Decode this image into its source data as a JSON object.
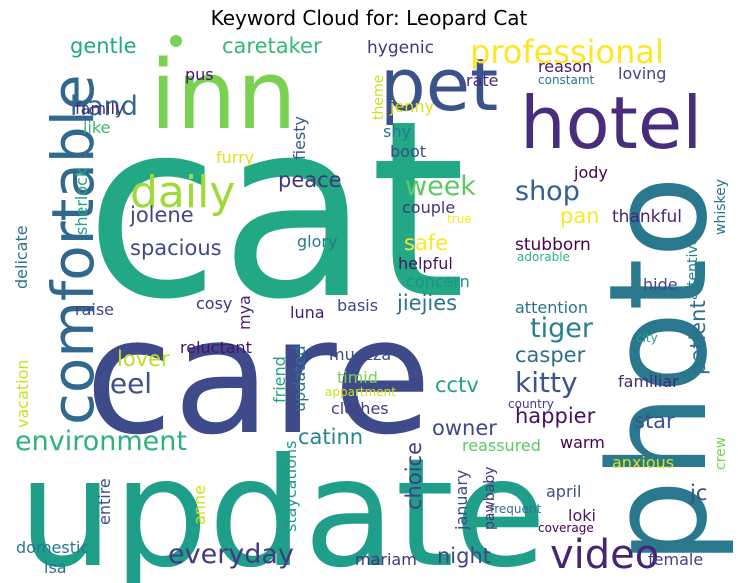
{
  "title": "Keyword Cloud for: Leopard Cat",
  "words": [
    {
      "text": "cat",
      "color": "#22a884"
    },
    {
      "text": "care",
      "color": "#3e4a89"
    },
    {
      "text": "update",
      "color": "#1f9e89"
    },
    {
      "text": "photo",
      "color": "#2a788e"
    },
    {
      "text": "inn",
      "color": "#7ad151"
    },
    {
      "text": "hotel",
      "color": "#472d7b"
    },
    {
      "text": "pet",
      "color": "#3b528b"
    },
    {
      "text": "comfortable",
      "color": "#31688e"
    },
    {
      "text": "professional",
      "color": "#fde725"
    },
    {
      "text": "daily",
      "color": "#a0da39"
    },
    {
      "text": "video",
      "color": "#482475"
    },
    {
      "text": "environment",
      "color": "#2db27d"
    },
    {
      "text": "everyday",
      "color": "#443983"
    },
    {
      "text": "kitty",
      "color": "#3b528b"
    },
    {
      "text": "tiger",
      "color": "#27808e"
    },
    {
      "text": "hand",
      "color": "#31688e"
    },
    {
      "text": "shop",
      "color": "#355f8d"
    },
    {
      "text": "week",
      "color": "#5ec962"
    },
    {
      "text": "feel",
      "color": "#3b528b"
    },
    {
      "text": "caretaker",
      "color": "#35b779"
    },
    {
      "text": "gentle",
      "color": "#22a884"
    },
    {
      "text": "jolene",
      "color": "#414487"
    },
    {
      "text": "spacious",
      "color": "#3e4989"
    },
    {
      "text": "peace",
      "color": "#46327e"
    },
    {
      "text": "jiejies",
      "color": "#2c728e"
    },
    {
      "text": "cctv",
      "color": "#20a386"
    },
    {
      "text": "casper",
      "color": "#2e6e8e"
    },
    {
      "text": "patient",
      "color": "#2e6e8e"
    },
    {
      "text": "catinn",
      "color": "#25848e"
    },
    {
      "text": "choice",
      "color": "#433e85"
    },
    {
      "text": "star",
      "color": "#3b528b"
    },
    {
      "text": "happier",
      "color": "#471063"
    },
    {
      "text": "owner",
      "color": "#3e4989"
    },
    {
      "text": "lover",
      "color": "#bddf26"
    },
    {
      "text": "night",
      "color": "#414487"
    },
    {
      "text": "jc",
      "color": "#3b528b"
    },
    {
      "text": "pan",
      "color": "#fde725"
    },
    {
      "text": "safe",
      "color": "#fde725"
    },
    {
      "text": "stubborn",
      "color": "#440154"
    },
    {
      "text": "thankful",
      "color": "#482475"
    },
    {
      "text": "attentive",
      "color": "#277f8e"
    },
    {
      "text": "whiskey",
      "color": "#2c728e"
    },
    {
      "text": "hygenic",
      "color": "#46337f"
    },
    {
      "text": "loving",
      "color": "#414487"
    },
    {
      "text": "rate",
      "color": "#472c7a"
    },
    {
      "text": "reason",
      "color": "#48186a"
    },
    {
      "text": "constamt",
      "color": "#2a788e"
    },
    {
      "text": "jenny",
      "color": "#dde318"
    },
    {
      "text": "theme",
      "color": "#d0e11c"
    },
    {
      "text": "fiesty",
      "color": "#365c8d"
    },
    {
      "text": "pus",
      "color": "#481668"
    },
    {
      "text": "family",
      "color": "#472c7a"
    },
    {
      "text": "like",
      "color": "#3aba76"
    },
    {
      "text": "sherlock",
      "color": "#20a486"
    },
    {
      "text": "furry",
      "color": "#dae319"
    },
    {
      "text": "shy",
      "color": "#2a768e"
    },
    {
      "text": "boot",
      "color": "#3e4a89"
    },
    {
      "text": "jody",
      "color": "#440154"
    },
    {
      "text": "couple",
      "color": "#46337f"
    },
    {
      "text": "true",
      "color": "#fde725"
    },
    {
      "text": "delicate",
      "color": "#2c728e"
    },
    {
      "text": "glory",
      "color": "#2a788e"
    },
    {
      "text": "helpful",
      "color": "#471365"
    },
    {
      "text": "concern",
      "color": "#21918c"
    },
    {
      "text": "adorable",
      "color": "#32b67a"
    },
    {
      "text": "attention",
      "color": "#2c728e"
    },
    {
      "text": "hide",
      "color": "#404688"
    },
    {
      "text": "raise",
      "color": "#3f4788"
    },
    {
      "text": "cosy",
      "color": "#46307e"
    },
    {
      "text": "mya",
      "color": "#481f70"
    },
    {
      "text": "luna",
      "color": "#481b6d"
    },
    {
      "text": "basis",
      "color": "#404688"
    },
    {
      "text": "city",
      "color": "#20a486"
    },
    {
      "text": "reluctant",
      "color": "#471365"
    },
    {
      "text": "friend",
      "color": "#20a386"
    },
    {
      "text": "updated",
      "color": "#2d718e"
    },
    {
      "text": "muezza",
      "color": "#3e4989"
    },
    {
      "text": "vacation",
      "color": "#cae11f"
    },
    {
      "text": "timid",
      "color": "#7ad151"
    },
    {
      "text": "appartment",
      "color": "#cae11f"
    },
    {
      "text": "clothes",
      "color": "#433e85"
    },
    {
      "text": "familiar",
      "color": "#472a7a"
    },
    {
      "text": "country",
      "color": "#433d84"
    },
    {
      "text": "reassured",
      "color": "#5ec962"
    },
    {
      "text": "crew",
      "color": "#7ad151"
    },
    {
      "text": "warm",
      "color": "#440154"
    },
    {
      "text": "staycations",
      "color": "#1f9a8a"
    },
    {
      "text": "entire",
      "color": "#3e4a89"
    },
    {
      "text": "anne",
      "color": "#d0e11c"
    },
    {
      "text": "january",
      "color": "#3e4a89"
    },
    {
      "text": "pawbaby",
      "color": "#46337f"
    },
    {
      "text": "anxious",
      "color": "#dde318"
    },
    {
      "text": "april",
      "color": "#3b528b"
    },
    {
      "text": "loki",
      "color": "#481769"
    },
    {
      "text": "frequent",
      "color": "#2c728e"
    },
    {
      "text": "coverage",
      "color": "#440154"
    },
    {
      "text": "domestic",
      "color": "#2a788e"
    },
    {
      "text": "isa",
      "color": "#2e6e8e"
    },
    {
      "text": "mariam",
      "color": "#46337f"
    },
    {
      "text": "female",
      "color": "#433e85"
    }
  ],
  "dots": [
    {
      "color": "#7ad151"
    }
  ]
}
